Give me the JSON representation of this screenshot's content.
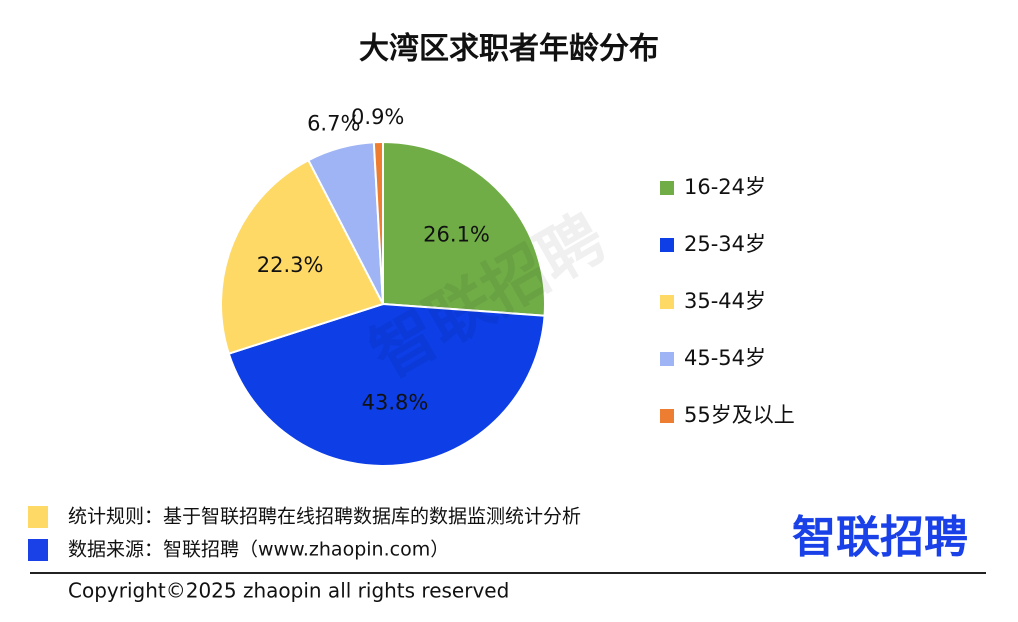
{
  "chart_data": {
    "type": "pie",
    "title": "大湾区求职者年龄分布",
    "categories": [
      "16-24岁",
      "25-34岁",
      "35-44岁",
      "45-54岁",
      "55岁及以上"
    ],
    "values": [
      26.1,
      43.8,
      22.3,
      6.7,
      0.9
    ],
    "value_labels": [
      "26.1%",
      "43.8%",
      "22.3%",
      "6.7%",
      "0.9%"
    ],
    "colors": [
      "#70ad47",
      "#0d3ee6",
      "#ffd966",
      "#9eb4f5",
      "#ed7d31"
    ],
    "legend": "right"
  },
  "watermark": "智联招聘",
  "footer": {
    "notes": [
      {
        "text": "统计规则：基于智联招聘在线招聘数据库的数据监测统计分析",
        "color": "#ffd966"
      },
      {
        "text": "数据来源：智联招聘（www.zhaopin.com）",
        "color": "#1a40e8"
      }
    ],
    "logo": "智联招聘",
    "copyright": "Copyright©2025 zhaopin all rights reserved"
  }
}
